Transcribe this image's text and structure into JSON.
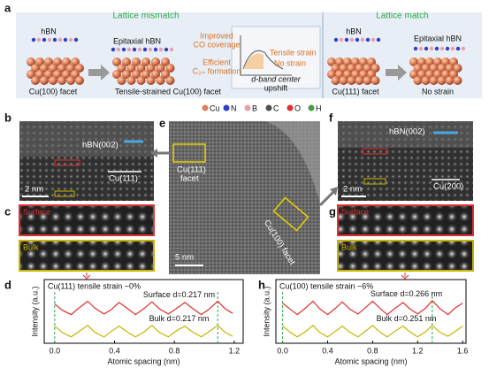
{
  "panels": {
    "a": "a",
    "b": "b",
    "c": "c",
    "d": "d",
    "e": "e",
    "f": "f",
    "g": "g",
    "h": "h"
  },
  "panel_a": {
    "mismatch": "Lattice mismatch",
    "match": "Lattice match",
    "hbn_left": "hBN",
    "epi_left": "Epitaxial hBN",
    "co1": "Improved",
    "co2": "CO coverage",
    "eff1": "Efficient",
    "eff2": "C₂₊ formation",
    "tensile": "Tensile strain",
    "nostrain_inset": "No strain",
    "dband1": "d-band center",
    "dband2": "upshift",
    "cu100": "Cu(100) facet",
    "tensile_cu100": "Tensile-strained  Cu(100) facet",
    "hbn_right": "hBN",
    "epi_right": "Epitaxial  hBN",
    "cu111": "Cu(111) facet",
    "nostrain": "No strain"
  },
  "atoms": [
    {
      "symbol": "Cu",
      "color": "#e0805a"
    },
    {
      "symbol": "N",
      "color": "#3040c0"
    },
    {
      "symbol": "B",
      "color": "#e8a0b0"
    },
    {
      "symbol": "C",
      "color": "#505050"
    },
    {
      "symbol": "O",
      "color": "#e03030"
    },
    {
      "symbol": "H",
      "color": "#40a040"
    }
  ],
  "images": {
    "b_hbn": "hBN(002)",
    "b_cu": "Cu(111)",
    "b_scale": "2 nm",
    "c_surface": "Surface",
    "c_bulk": "Bulk",
    "e_cu111_1": "Cu(111)",
    "e_cu111_2": "facet",
    "e_cu100": "Cu(100) facet",
    "e_scale": "5 nm",
    "f_hbn": "hBN(002)",
    "f_cu": "Cu(200)",
    "f_scale": "2 nm",
    "g_surface": "Surface",
    "g_bulk": "Bulk"
  },
  "chart_data": [
    {
      "type": "line",
      "title": "Cu(111) tensile strain ~0%",
      "x_label": "Atomic spacing (nm)",
      "y_label": "Intensity (a.u.)",
      "x": [
        0,
        0.05,
        0.11,
        0.16,
        0.22,
        0.27,
        0.33,
        0.38,
        0.43,
        0.49,
        0.54,
        0.6,
        0.65,
        0.7,
        0.76,
        0.81,
        0.87,
        0.92,
        0.98,
        1.03,
        1.09,
        1.14,
        1.19
      ],
      "xlim": [
        -0.07,
        1.26
      ],
      "ylim": [
        0,
        1
      ],
      "xticks": [
        {
          "value": 0,
          "label": "0.0"
        },
        {
          "value": 0.4,
          "label": "0.4"
        },
        {
          "value": 0.8,
          "label": "0.8"
        },
        {
          "value": 1.2,
          "label": "1.2"
        }
      ],
      "guide_x": [
        0,
        1.09
      ],
      "series": [
        {
          "name": "Surface d=0.217 nm",
          "color": "#e03030",
          "values": [
            0.62,
            0.52,
            0.45,
            0.55,
            0.66,
            0.55,
            0.46,
            0.53,
            0.64,
            0.54,
            0.45,
            0.55,
            0.65,
            0.54,
            0.46,
            0.54,
            0.64,
            0.55,
            0.45,
            0.53,
            0.66,
            0.54,
            0.47
          ]
        },
        {
          "name": "Bulk d=0.217 nm",
          "color": "#c8b400",
          "values": [
            0.27,
            0.17,
            0.1,
            0.18,
            0.28,
            0.17,
            0.1,
            0.19,
            0.27,
            0.17,
            0.1,
            0.18,
            0.28,
            0.17,
            0.1,
            0.19,
            0.27,
            0.18,
            0.1,
            0.18,
            0.28,
            0.17,
            0.11
          ]
        }
      ]
    },
    {
      "type": "line",
      "title": "Cu(100) tensile strain ~6%",
      "x_label": "Atomic spacing (nm)",
      "y_label": "Intensity (a.u.)",
      "x": [
        0,
        0.07,
        0.13,
        0.2,
        0.27,
        0.33,
        0.4,
        0.47,
        0.53,
        0.6,
        0.67,
        0.73,
        0.8,
        0.87,
        0.93,
        1.0,
        1.07,
        1.13,
        1.2,
        1.27,
        1.33,
        1.4,
        1.47,
        1.53,
        1.6
      ],
      "xlim": [
        -0.06,
        1.63
      ],
      "ylim": [
        0,
        1
      ],
      "xticks": [
        {
          "value": 0,
          "label": "0.0"
        },
        {
          "value": 0.4,
          "label": "0.4"
        },
        {
          "value": 0.8,
          "label": "0.8"
        },
        {
          "value": 1.2,
          "label": "1.2"
        },
        {
          "value": 1.6,
          "label": "1.6"
        }
      ],
      "guide_x": [
        0,
        1.33
      ],
      "series": [
        {
          "name": "Surface d=0.266 nm",
          "color": "#e03030",
          "values": [
            0.63,
            0.53,
            0.45,
            0.55,
            0.66,
            0.54,
            0.45,
            0.55,
            0.65,
            0.53,
            0.46,
            0.55,
            0.66,
            0.54,
            0.45,
            0.55,
            0.64,
            0.54,
            0.46,
            0.55,
            0.67,
            0.54,
            0.45,
            0.55,
            0.63
          ]
        },
        {
          "name": "Bulk d=0.251 nm",
          "color": "#c8b400",
          "values": [
            0.27,
            0.17,
            0.1,
            0.18,
            0.28,
            0.17,
            0.1,
            0.19,
            0.27,
            0.17,
            0.1,
            0.18,
            0.28,
            0.17,
            0.1,
            0.19,
            0.27,
            0.18,
            0.1,
            0.18,
            0.28,
            0.17,
            0.11,
            0.18,
            0.27
          ]
        }
      ]
    }
  ]
}
